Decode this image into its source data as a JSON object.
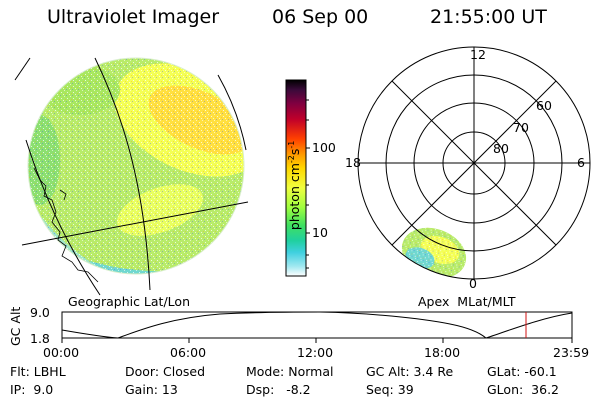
{
  "header": {
    "title": "Ultraviolet Imager",
    "date": "06 Sep 00",
    "time": "21:55:00 UT"
  },
  "colorbar": {
    "label": "photon cm⁻²s⁻¹",
    "label_main": "photon cm",
    "label_sup1": "-2",
    "label_mid": "s",
    "label_sup2": "-1",
    "ticks": [
      "100",
      "10"
    ]
  },
  "polar_plot": {
    "mlt_labels": {
      "top": "12",
      "bottom": "0",
      "left": "18",
      "right": "6"
    },
    "lat_labels": [
      "60",
      "70",
      "80"
    ]
  },
  "map_labels": {
    "left": "Geographic Lat/Lon",
    "right": "Apex  MLat/MLT"
  },
  "altitude_plot": {
    "axis_title": "GC Alt",
    "y_ticks": [
      "9.0",
      "1.8"
    ],
    "x_ticks": [
      "00:00",
      "06:00",
      "12:00",
      "18:00",
      "23:59"
    ]
  },
  "info": {
    "flt": "Flt: LBHL",
    "ip": "IP:  9.0",
    "door": "Door: Closed",
    "gain": "Gain: 13",
    "mode": "Mode: Normal",
    "dsp": "Dsp:   -8.2",
    "gcalt": "GC Alt: 3.4 Re",
    "seq": "Seq: 39",
    "glat": "GLat: -60.1",
    "glon": "GLon:  36.2"
  },
  "colors": {
    "marker": "#d01010",
    "colorbar": [
      "#000000",
      "#3a0a3a",
      "#800040",
      "#c0002a",
      "#ff4000",
      "#ff9a00",
      "#ffd700",
      "#f0ff40",
      "#a0ff40",
      "#40e060",
      "#20d0a0",
      "#40d0e0",
      "#a0e8f0",
      "#ffffff"
    ]
  }
}
